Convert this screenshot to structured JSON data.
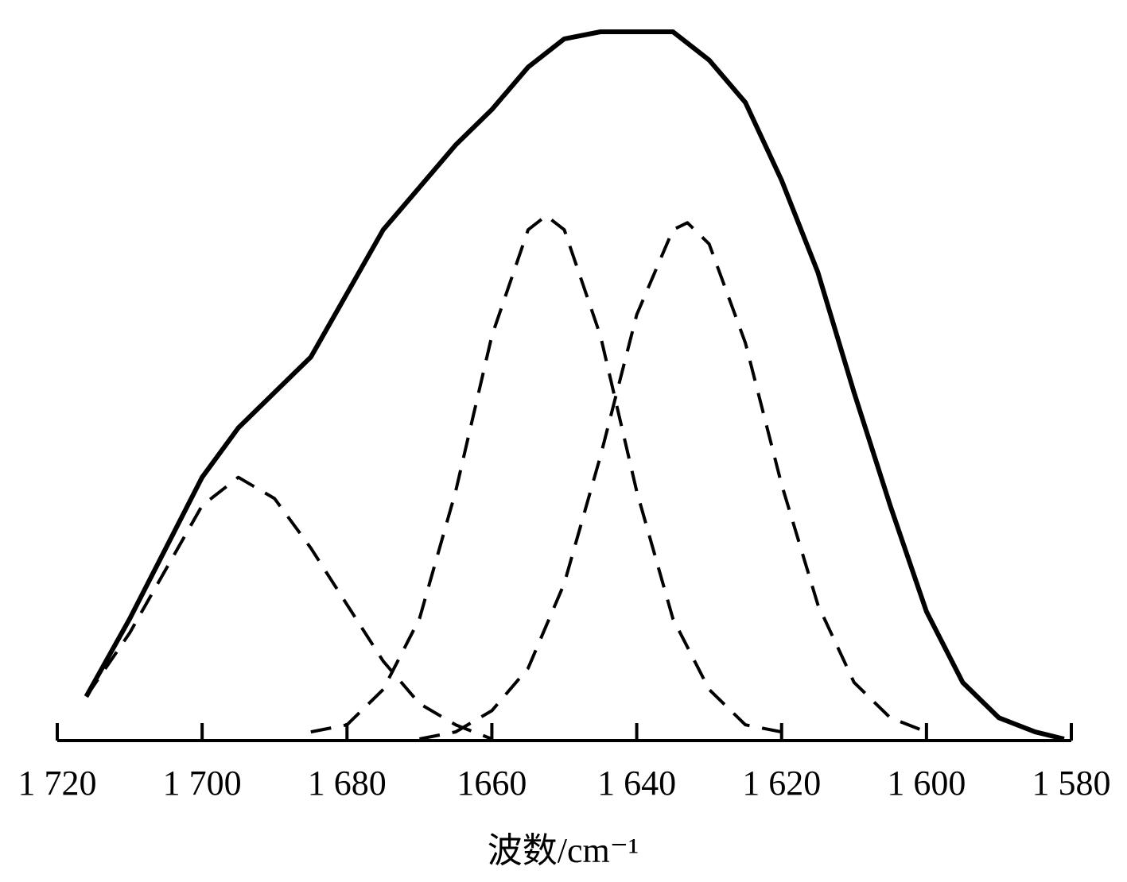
{
  "chart_data": {
    "type": "line",
    "x_label": "波数/cm⁻¹",
    "xlim": [
      1720,
      1580
    ],
    "xticks": [
      {
        "value": 1720,
        "label": "1 720"
      },
      {
        "value": 1700,
        "label": "1 700"
      },
      {
        "value": 1680,
        "label": "1 680"
      },
      1660,
      {
        "value": 1640,
        "label": "1 640"
      },
      {
        "value": 1620,
        "label": "1 620"
      },
      {
        "value": 1600,
        "label": "1 600"
      },
      {
        "value": 1580,
        "label": "1 580"
      }
    ],
    "ylim": [
      0,
      1
    ],
    "series": [
      {
        "color": "#000000",
        "line_style": "solid",
        "x": [
          1716,
          1710,
          1705,
          1700,
          1695,
          1690,
          1685,
          1680,
          1675,
          1670,
          1665,
          1660,
          1655,
          1650,
          1645,
          1640,
          1635,
          1630,
          1625,
          1620,
          1615,
          1610,
          1605,
          1600,
          1595,
          1590,
          1585,
          1581
        ],
        "values": [
          0.06,
          0.17,
          0.27,
          0.37,
          0.44,
          0.49,
          0.54,
          0.63,
          0.72,
          0.78,
          0.84,
          0.89,
          0.95,
          0.99,
          1.0,
          1.0,
          1.0,
          0.96,
          0.9,
          0.79,
          0.66,
          0.49,
          0.33,
          0.18,
          0.08,
          0.03,
          0.01,
          0
        ]
      },
      {
        "color": "#000000",
        "line_style": "dashed",
        "x": [
          1716,
          1710,
          1705,
          1700,
          1695,
          1690,
          1685,
          1680,
          1675,
          1670,
          1665,
          1660
        ],
        "values": [
          0.06,
          0.15,
          0.24,
          0.33,
          0.37,
          0.34,
          0.27,
          0.19,
          0.11,
          0.05,
          0.02,
          0
        ]
      },
      {
        "color": "#000000",
        "line_style": "dashed",
        "x": [
          1685,
          1680,
          1675,
          1670,
          1665,
          1660,
          1655,
          1652.5,
          1650,
          1645,
          1640,
          1635,
          1630,
          1625,
          1620
        ],
        "values": [
          0.01,
          0.02,
          0.07,
          0.17,
          0.35,
          0.57,
          0.72,
          0.74,
          0.72,
          0.57,
          0.35,
          0.17,
          0.07,
          0.02,
          0.01
        ]
      },
      {
        "color": "#000000",
        "line_style": "dashed",
        "x": [
          1670,
          1665,
          1660,
          1655,
          1650,
          1645,
          1640,
          1635,
          1633,
          1630,
          1625,
          1620,
          1615,
          1610,
          1605,
          1600
        ],
        "values": [
          0,
          0.01,
          0.04,
          0.1,
          0.22,
          0.4,
          0.6,
          0.72,
          0.73,
          0.7,
          0.56,
          0.36,
          0.19,
          0.08,
          0.03,
          0.01
        ]
      }
    ]
  }
}
